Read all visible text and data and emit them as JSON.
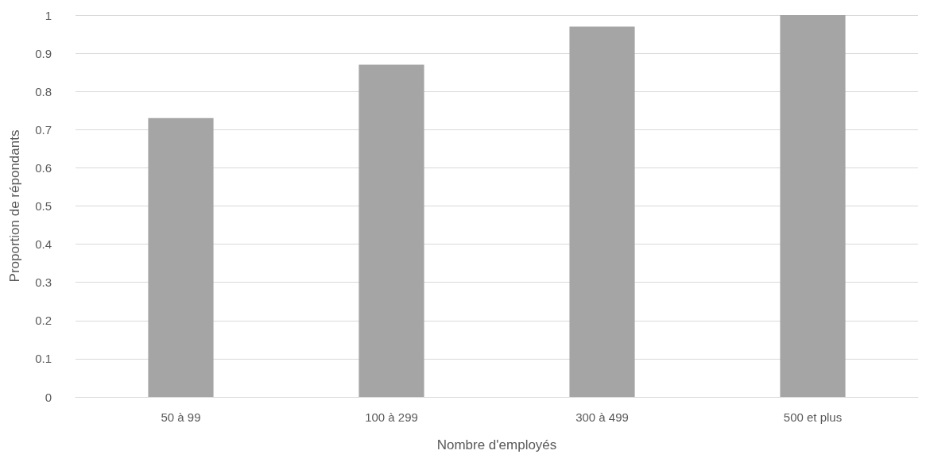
{
  "chart_data": {
    "type": "bar",
    "xlabel": "Nombre d'employés",
    "ylabel": "Proportion de répondants",
    "categories": [
      "50 à 99",
      "100 à 299",
      "300 à 499",
      "500 et plus"
    ],
    "values": [
      0.73,
      0.87,
      0.97,
      1.0
    ],
    "color": "#a5a5a5",
    "ylim": [
      0,
      1
    ],
    "yticks": [
      0,
      0.1,
      0.2,
      0.3,
      0.4,
      0.5,
      0.6,
      0.7,
      0.8,
      0.9,
      1
    ],
    "grid": "y"
  }
}
